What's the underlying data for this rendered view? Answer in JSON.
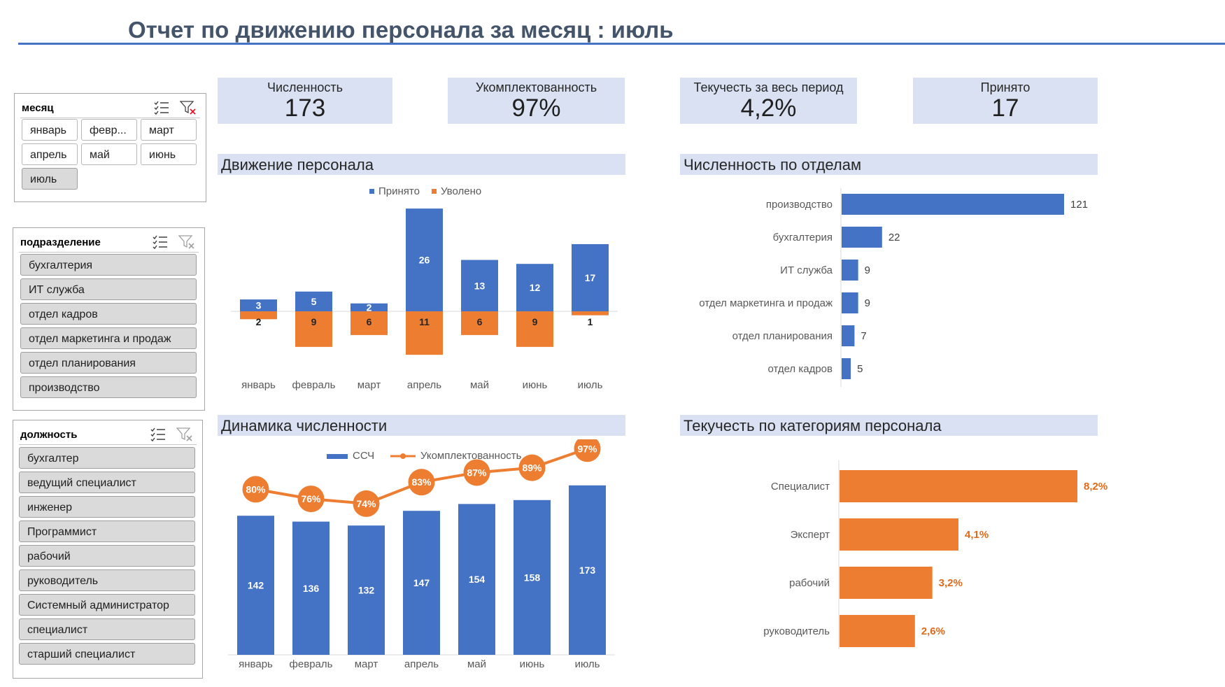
{
  "title": "Отчет по движению персонала за месяц : июль",
  "colors": {
    "blue": "#4472c4",
    "orange": "#ed7d31",
    "card": "#d9e1f2",
    "title": "#44546a"
  },
  "slicers": {
    "month": {
      "header": "месяц",
      "items": [
        "январь",
        "февр...",
        "март",
        "апрель",
        "май",
        "июнь",
        "июль"
      ],
      "selected": "июль"
    },
    "department": {
      "header": "подразделение",
      "items": [
        "бухгалтерия",
        "ИТ служба",
        "отдел кадров",
        "отдел маркетинга и продаж",
        "отдел планирования",
        "производство"
      ]
    },
    "position": {
      "header": "должность",
      "items": [
        "бухгалтер",
        "ведущий специалист",
        "инженер",
        "Программист",
        "рабочий",
        "руководитель",
        "Системный администратор",
        "специалист",
        "старший специалист"
      ]
    },
    "icons": [
      "multi-select-icon",
      "clear-filter-icon"
    ]
  },
  "kpis": [
    {
      "label": "Численность",
      "value": "173"
    },
    {
      "label": "Укомплектованность",
      "value": "97%"
    },
    {
      "label": "Текучесть за весь период",
      "value": "4,2%"
    },
    {
      "label": "Принято",
      "value": "17"
    }
  ],
  "sections": {
    "movement": "Движение персонала",
    "departments": "Численность по отделам",
    "dynamics": "Динамика численности",
    "turnover": "Текучесть по категориям персонала"
  },
  "chart_data": [
    {
      "type": "bar",
      "categories": [
        "январь",
        "февраль",
        "март",
        "апрель",
        "май",
        "июнь",
        "июль"
      ],
      "series": [
        {
          "name": "Принято",
          "values": [
            3,
            5,
            2,
            26,
            13,
            12,
            17
          ],
          "color": "#4472c4"
        },
        {
          "name": "Уволено",
          "values": [
            2,
            9,
            6,
            11,
            6,
            9,
            1
          ],
          "color": "#ed7d31"
        }
      ],
      "legend": "top"
    },
    {
      "type": "bar",
      "orientation": "horizontal",
      "categories": [
        "производство",
        "бухгалтерия",
        "ИТ служба",
        "отдел маркетинга и продаж",
        "отдел планирования",
        "отдел кадров"
      ],
      "values": [
        121,
        22,
        9,
        9,
        7,
        5
      ],
      "color": "#4472c4"
    },
    {
      "type": "bar",
      "categories": [
        "январь",
        "февраль",
        "март",
        "апрель",
        "май",
        "июнь",
        "июль"
      ],
      "series": [
        {
          "name": "ССЧ",
          "values": [
            142,
            136,
            132,
            147,
            154,
            158,
            173
          ],
          "color": "#4472c4",
          "kind": "bar"
        },
        {
          "name": "Укомплектованность",
          "values": [
            80,
            76,
            74,
            83,
            87,
            89,
            97
          ],
          "labels": [
            "80%",
            "76%",
            "74%",
            "83%",
            "87%",
            "89%",
            "97%"
          ],
          "color": "#ed7d31",
          "kind": "line"
        }
      ],
      "legend": "top"
    },
    {
      "type": "bar",
      "orientation": "horizontal",
      "categories": [
        "Специалист",
        "Эксперт",
        "рабочий",
        "руководитель"
      ],
      "values": [
        8.2,
        4.1,
        3.2,
        2.6
      ],
      "labels": [
        "8,2%",
        "4,1%",
        "3,2%",
        "2,6%"
      ],
      "color": "#ed7d31"
    }
  ]
}
